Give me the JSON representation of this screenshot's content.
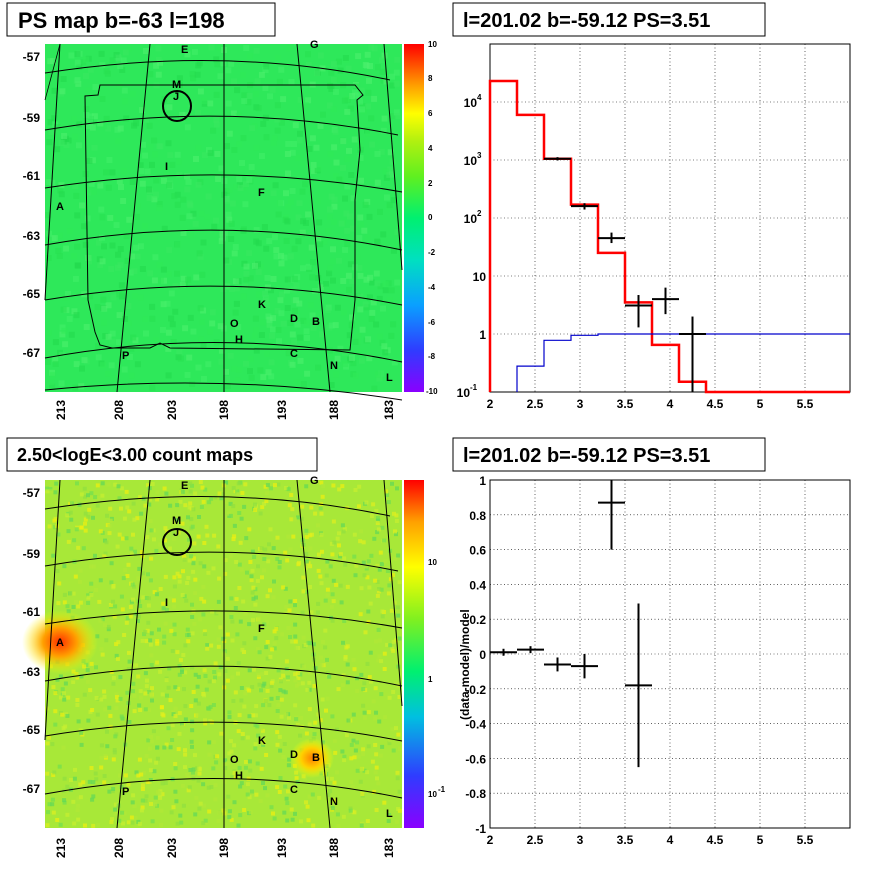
{
  "chart_data": [
    {
      "type": "heatmap",
      "title": "PS map b=-63 l=198",
      "y_ticks": [
        "-57",
        "-59",
        "-61",
        "-63",
        "-65",
        "-67"
      ],
      "x_ticks": [
        "213",
        "208",
        "203",
        "198",
        "193",
        "188",
        "183"
      ],
      "colorbar": {
        "ticks": [
          "10",
          "8",
          "6",
          "4",
          "2",
          "0",
          "-2",
          "-4",
          "-6",
          "-8",
          "-10"
        ],
        "range": [
          -10,
          10
        ]
      },
      "sources": [
        "E",
        "G",
        "M",
        "J",
        "I",
        "F",
        "A",
        "K",
        "D",
        "B",
        "O",
        "H",
        "C",
        "N",
        "P",
        "L"
      ]
    },
    {
      "type": "line",
      "title": "l=201.02 b=-59.12 PS=3.51",
      "yscale": "log",
      "xlim": [
        2,
        6
      ],
      "ylim": [
        0.1,
        100000
      ],
      "x_ticks": [
        "2",
        "2.5",
        "3",
        "3.5",
        "4",
        "4.5",
        "5",
        "5.5"
      ],
      "y_ticks": [
        {
          "v": 10000,
          "base": "10",
          "exp": "4"
        },
        {
          "v": 1000,
          "base": "10",
          "exp": "3"
        },
        {
          "v": 100,
          "base": "10",
          "exp": "2"
        },
        {
          "v": 10,
          "label": "10"
        },
        {
          "v": 1,
          "label": "1"
        },
        {
          "v": 0.1,
          "base": "10",
          "exp": "-1"
        }
      ],
      "series": [
        {
          "style": "model-step",
          "color": "#ff0000",
          "edges": [
            2,
            2.3,
            2.6,
            2.9,
            3.2,
            3.5,
            3.8,
            4.1,
            4.4,
            6
          ],
          "values": [
            23000,
            6000,
            1050,
            170,
            25,
            3.5,
            0.65,
            0.15,
            0.1
          ]
        },
        {
          "style": "background-step",
          "color": "#0000cc",
          "edges": [
            2.3,
            2.6,
            2.9,
            3.2,
            3.5,
            3.8,
            4.1,
            4.4,
            6
          ],
          "values": [
            0.28,
            0.78,
            0.95,
            1.0,
            1.0,
            1.0,
            1.0,
            1.0
          ]
        },
        {
          "style": "data-points",
          "color": "#000000",
          "points": [
            {
              "x": 2.75,
              "y": 1050,
              "xerr": 0.15,
              "ylo": 980,
              "yhi": 1120
            },
            {
              "x": 3.05,
              "y": 160,
              "xerr": 0.15,
              "ylo": 140,
              "yhi": 180
            },
            {
              "x": 3.35,
              "y": 45,
              "xerr": 0.15,
              "ylo": 37,
              "yhi": 56
            },
            {
              "x": 3.65,
              "y": 3.1,
              "xerr": 0.15,
              "ylo": 1.3,
              "yhi": 4.7
            },
            {
              "x": 3.95,
              "y": 4.0,
              "xerr": 0.15,
              "ylo": 2.2,
              "yhi": 6.3
            },
            {
              "x": 4.25,
              "y": 1.0,
              "xerr": 0.15,
              "ylo": 0.1,
              "yhi": 2.0
            }
          ]
        }
      ]
    },
    {
      "type": "heatmap",
      "title": "2.50<logE<3.00 count maps",
      "y_ticks": [
        "-57",
        "-59",
        "-61",
        "-63",
        "-65",
        "-67"
      ],
      "x_ticks": [
        "213",
        "208",
        "203",
        "198",
        "193",
        "188",
        "183"
      ],
      "colorbar": {
        "scale": "log",
        "ticks": [
          {
            "v": 10,
            "label": "10"
          },
          {
            "v": 1,
            "label": "1"
          },
          {
            "v": 0.1,
            "base": "10",
            "exp": "-1"
          }
        ]
      },
      "sources": [
        "E",
        "G",
        "M",
        "J",
        "I",
        "F",
        "A",
        "K",
        "D",
        "B",
        "O",
        "H",
        "C",
        "N",
        "P",
        "L"
      ]
    },
    {
      "type": "scatter",
      "title": "l=201.02 b=-59.12 PS=3.51",
      "ylabel": "(data-model)/model",
      "xlim": [
        2,
        6
      ],
      "ylim": [
        -1,
        1
      ],
      "grid": true,
      "x_ticks": [
        "2",
        "2.5",
        "3",
        "3.5",
        "4",
        "4.5",
        "5",
        "5.5"
      ],
      "y_ticks": [
        "1",
        "0.8",
        "0.6",
        "0.4",
        "0.2",
        "0",
        "-0.2",
        "-0.4",
        "-0.6",
        "-0.8",
        "-1"
      ],
      "points": [
        {
          "x": 2.15,
          "y": 0.01,
          "xerr": 0.15,
          "ylo": -0.01,
          "yhi": 0.03
        },
        {
          "x": 2.45,
          "y": 0.025,
          "xerr": 0.15,
          "ylo": 0.005,
          "yhi": 0.045
        },
        {
          "x": 2.75,
          "y": -0.06,
          "xerr": 0.15,
          "ylo": -0.1,
          "yhi": -0.02
        },
        {
          "x": 3.05,
          "y": -0.07,
          "xerr": 0.15,
          "ylo": -0.14,
          "yhi": 0.0
        },
        {
          "x": 3.35,
          "y": 0.87,
          "xerr": 0.15,
          "ylo": 0.6,
          "yhi": 1.0
        },
        {
          "x": 3.65,
          "y": -0.18,
          "xerr": 0.15,
          "ylo": -0.65,
          "yhi": 0.29
        }
      ]
    }
  ],
  "colors": {
    "model": "#ff0000",
    "background": "#0000cc",
    "data": "#000000"
  }
}
